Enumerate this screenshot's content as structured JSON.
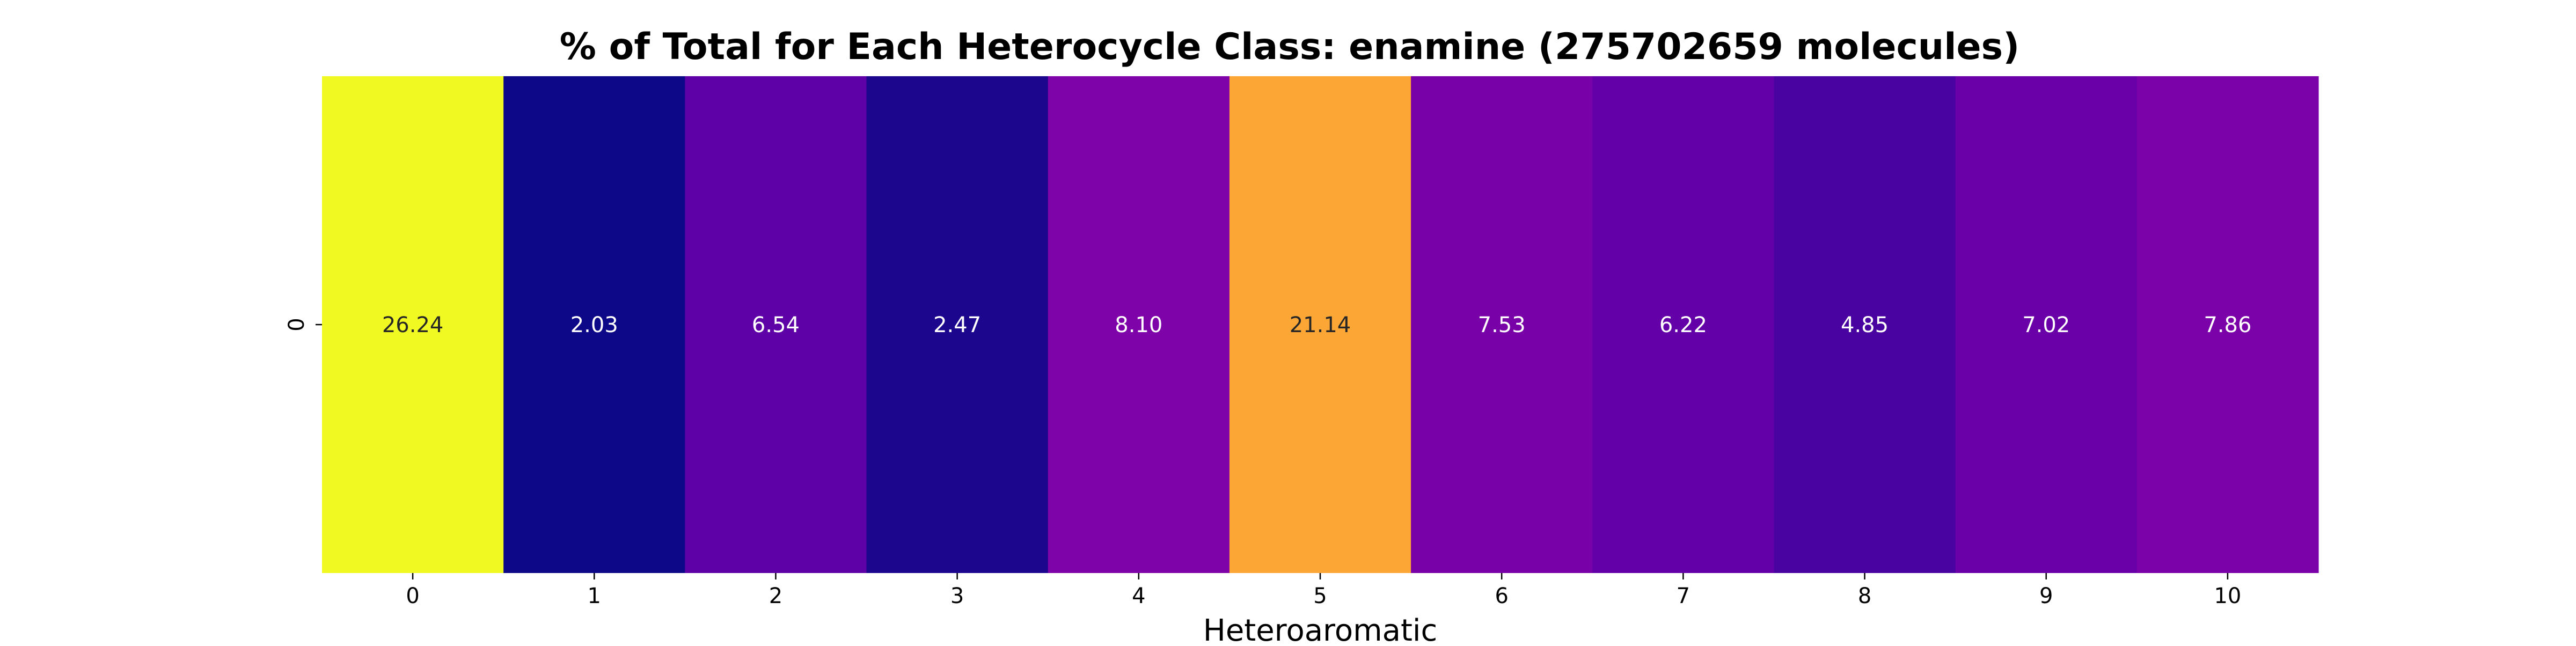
{
  "chart_data": {
    "type": "heatmap",
    "title": "% of Total for Each Heterocycle Class: enamine (275702659 molecules)",
    "xlabel": "Heteroaromatic",
    "ylabel": "",
    "x_categories": [
      "0",
      "1",
      "2",
      "3",
      "4",
      "5",
      "6",
      "7",
      "8",
      "9",
      "10"
    ],
    "y_categories": [
      "0"
    ],
    "values": [
      [
        26.24,
        2.03,
        6.54,
        2.47,
        8.1,
        21.14,
        7.53,
        6.22,
        4.85,
        7.02,
        7.86
      ]
    ],
    "value_labels": [
      "26.24",
      "2.03",
      "6.54",
      "2.47",
      "8.10",
      "21.14",
      "7.53",
      "6.22",
      "4.85",
      "7.02",
      "7.86"
    ],
    "colormap": "plasma",
    "colorbar": false,
    "grid": false,
    "colors": {
      "cell_fills": [
        "#f0f921",
        "#0d0887",
        "#5e01a6",
        "#1b068d",
        "#7e03a8",
        "#fca636",
        "#7901a8",
        "#6300a7",
        "#4903a0",
        "#6a00a8",
        "#7a02a8"
      ],
      "annotation_dark": "#262626",
      "annotation_light": "#ffffff",
      "text": "#000000"
    }
  }
}
